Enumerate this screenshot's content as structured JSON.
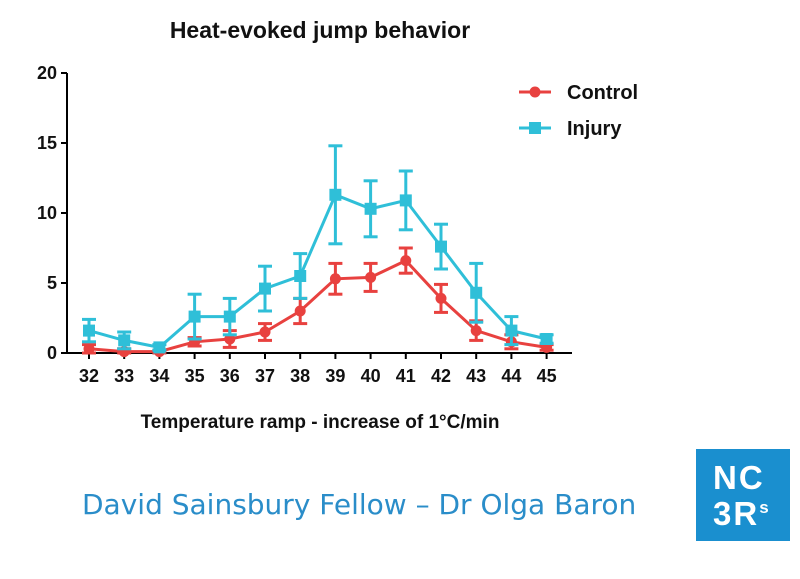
{
  "chart_data": {
    "type": "line",
    "title": "Heat-evoked jump behavior",
    "xlabel": "Temperature ramp -  increase of 1°C/min",
    "ylabel": "",
    "categories": [
      "32",
      "33",
      "34",
      "35",
      "36",
      "37",
      "38",
      "39",
      "40",
      "41",
      "42",
      "43",
      "44",
      "45"
    ],
    "ylim": [
      0,
      20
    ],
    "yticks": [
      "0",
      "5",
      "10",
      "15",
      "20"
    ],
    "legend_position": "top-right",
    "grid": false,
    "series": [
      {
        "name": "Control",
        "color": "#e8413f",
        "marker": "circle",
        "values": [
          0.3,
          0.1,
          0.1,
          0.8,
          1.0,
          1.5,
          3.0,
          5.3,
          5.4,
          6.6,
          3.9,
          1.6,
          0.8,
          0.4
        ],
        "error": [
          0.3,
          0.2,
          0.1,
          0.3,
          0.6,
          0.6,
          0.9,
          1.1,
          1.0,
          0.9,
          1.0,
          0.7,
          0.5,
          0.2
        ]
      },
      {
        "name": "Injury",
        "color": "#2fbfd8",
        "marker": "square",
        "values": [
          1.6,
          0.9,
          0.4,
          2.6,
          2.6,
          4.6,
          5.5,
          11.3,
          10.3,
          10.9,
          7.6,
          4.3,
          1.6,
          1.0
        ],
        "error": [
          0.8,
          0.6,
          0.2,
          1.6,
          1.3,
          1.6,
          1.6,
          3.5,
          2.0,
          2.1,
          1.6,
          2.1,
          1.0,
          0.3
        ]
      }
    ]
  },
  "footer": {
    "credit": "David Sainsbury Fellow – Dr Olga Baron"
  },
  "logo": {
    "line1": "NC",
    "line2_main": "3R",
    "line2_sup": "s",
    "color": "#1a8fcf"
  }
}
